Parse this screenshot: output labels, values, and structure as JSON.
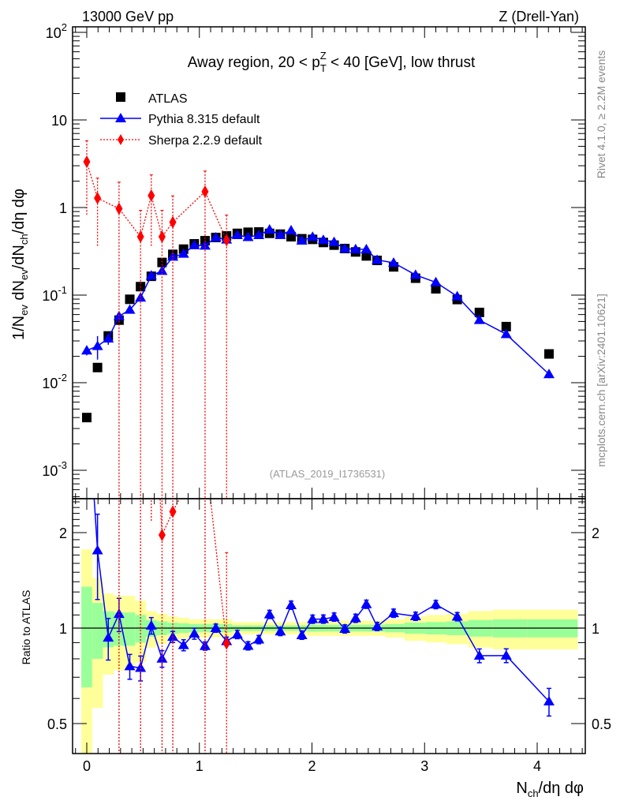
{
  "header": {
    "left": "13000 GeV pp",
    "right": "Z (Drell-Yan)"
  },
  "side_text": {
    "rivet": "Rivet 4.1.0, ≥ 2.2M events",
    "mcplots": "mcplots.cern.ch [arXiv:2401.10621]"
  },
  "analysis_id": "(ATLAS_2019_I1736531)",
  "colors": {
    "atlas": "#000000",
    "pythia": "#0000ff",
    "sherpa": "#ff0000",
    "band_inner": "#99ff99",
    "band_outer": "#ffff99"
  },
  "chart_data": {
    "type": "scatter",
    "title": {
      "pre": "Away region, 20 < p",
      "sub": "T",
      "sup": "Z",
      "post": " < 40 [GeV], low thrust"
    },
    "xlabel": {
      "main": "N",
      "sub": "ch",
      "post": "/dη dφ"
    },
    "ylabel": {
      "p1": "1/N",
      "s1": "ev",
      "p2": " dN",
      "s2": "ev",
      "p3": "/dN",
      "s3": "ch",
      "p4": "/dη dφ"
    },
    "ratio_ylabel": "Ratio to ATLAS",
    "xlim": [
      -0.126,
      4.43
    ],
    "ylim": [
      0.00048,
      115
    ],
    "yscale": "log",
    "ratio_ylim": [
      0.4,
      2.56
    ],
    "legend_position": "top-left",
    "x_tick_labels": [
      "0",
      "1",
      "2",
      "3",
      "4"
    ],
    "y_tick_labels": [
      {
        "base": "10",
        "exp": "-3",
        "value": 0.001
      },
      {
        "base": "10",
        "exp": "-2",
        "value": 0.01
      },
      {
        "base": "10",
        "exp": "-1",
        "value": 0.1
      },
      {
        "base": "1",
        "exp": "",
        "value": 1
      },
      {
        "base": "10",
        "exp": "",
        "value": 10
      },
      {
        "base": "10",
        "exp": "2",
        "value": 100
      }
    ],
    "ratio_tick_labels": [
      {
        "label": "0.5",
        "value": 0.5
      },
      {
        "label": "1",
        "value": 1
      },
      {
        "label": "2",
        "value": 2
      }
    ],
    "x": [
      0,
      0.0955,
      0.191,
      0.2865,
      0.382,
      0.4775,
      0.573,
      0.6685,
      0.764,
      0.8595,
      0.955,
      1.0505,
      1.146,
      1.2415,
      1.337,
      1.4325,
      1.528,
      1.6235,
      1.719,
      1.8145,
      1.91,
      2.0055,
      2.101,
      2.1965,
      2.292,
      2.3875,
      2.483,
      2.5785,
      2.725,
      2.92,
      3.1,
      3.29,
      3.487,
      3.725,
      4.105
    ],
    "series": [
      {
        "name": "ATLAS",
        "marker": "square",
        "values": [
          0.004,
          0.0149,
          0.0342,
          0.0518,
          0.0896,
          0.125,
          0.164,
          0.236,
          0.292,
          0.335,
          0.385,
          0.418,
          0.455,
          0.474,
          0.507,
          0.522,
          0.526,
          0.507,
          0.497,
          0.464,
          0.44,
          0.433,
          0.399,
          0.372,
          0.34,
          0.311,
          0.28,
          0.249,
          0.21,
          0.156,
          0.118,
          0.089,
          0.0634,
          0.0437,
          0.0213
        ],
        "rel_uncertainty": [
          0.35,
          0.2,
          0.13,
          0.12,
          0.12,
          0.1,
          0.06,
          0.05,
          0.04,
          0.035,
          0.03,
          0.03,
          0.03,
          0.03,
          0.02,
          0.02,
          0.02,
          0.02,
          0.02,
          0.02,
          0.02,
          0.025,
          0.025,
          0.025,
          0.025,
          0.025,
          0.025,
          0.025,
          0.03,
          0.04,
          0.045,
          0.05,
          0.06,
          0.065,
          0.065
        ]
      },
      {
        "name": "Pythia 8.315 default",
        "marker": "triangle",
        "values": [
          0.0233,
          0.0262,
          0.0319,
          0.0574,
          0.0679,
          0.0936,
          0.167,
          0.189,
          0.274,
          0.296,
          0.37,
          0.367,
          0.455,
          0.431,
          0.484,
          0.459,
          0.484,
          0.56,
          0.485,
          0.548,
          0.418,
          0.462,
          0.426,
          0.403,
          0.338,
          0.334,
          0.333,
          0.252,
          0.234,
          0.17,
          0.14,
          0.0967,
          0.0519,
          0.0358,
          0.0125
        ],
        "rel_error": [
          0.12,
          0.3,
          0.15,
          0.12,
          0.09,
          0.09,
          0.06,
          0.06,
          0.04,
          0.04,
          0.04,
          0.03,
          0.03,
          0.03,
          0.03,
          0.03,
          0.03,
          0.03,
          0.03,
          0.03,
          0.03,
          0.03,
          0.03,
          0.03,
          0.03,
          0.03,
          0.03,
          0.03,
          0.03,
          0.03,
          0.03,
          0.03,
          0.05,
          0.05,
          0.1
        ]
      },
      {
        "name": "Sherpa 2.2.9 default",
        "marker": "diamond",
        "x": [
          0,
          0.0955,
          0.2865,
          0.4775,
          0.573,
          0.6685,
          0.764,
          1.0505,
          1.2415
        ],
        "values": [
          3.33,
          1.28,
          0.97,
          0.464,
          1.37,
          0.464,
          0.68,
          1.52,
          0.424
        ],
        "err_up": [
          5.8,
          2.17,
          1.95,
          0.93,
          2.36,
          0.93,
          1.36,
          2.61,
          0.82
        ],
        "err_down": [
          0.83,
          0.354,
          0.0001,
          0.0001,
          0.357,
          0.0001,
          0.0001,
          0.0001,
          0.0001
        ]
      }
    ]
  }
}
